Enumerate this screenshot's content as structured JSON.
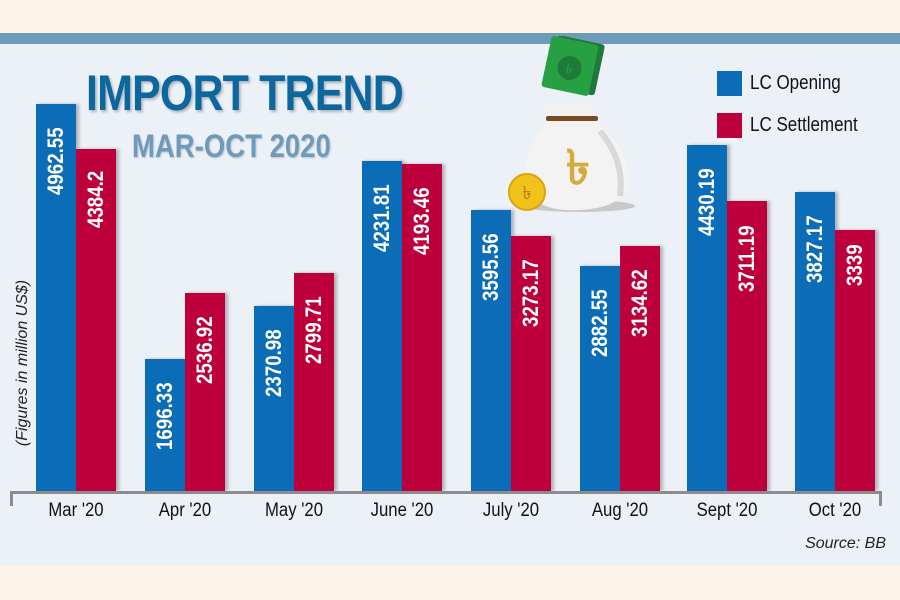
{
  "header": {
    "title": "IMPORT TREND",
    "subtitle": "MAR-OCT 2020"
  },
  "legend": [
    {
      "label": "LC Opening",
      "color": "#0b6cb8"
    },
    {
      "label": "LC Settlement",
      "color": "#bd003b"
    }
  ],
  "ylabel_text": "(Figures in million US$)",
  "source_text": "Source: BB",
  "illustration": "money-bag-taka-icon",
  "chart_data": {
    "type": "bar",
    "title": "IMPORT TREND",
    "subtitle": "MAR-OCT 2020",
    "xlabel": "",
    "ylabel": "(Figures in million US$)",
    "categories": [
      "Mar '20",
      "Apr '20",
      "May '20",
      "June '20",
      "July '20",
      "Aug '20",
      "Sept '20",
      "Oct '20"
    ],
    "series": [
      {
        "name": "LC Opening",
        "color": "#0b6cb8",
        "values": [
          4962.55,
          1696.33,
          2370.98,
          4231.81,
          3595.56,
          2882.55,
          4430.19,
          3827.17
        ]
      },
      {
        "name": "LC Settlement",
        "color": "#bd003b",
        "values": [
          4384.2,
          2536.92,
          2799.71,
          4193.46,
          3273.17,
          3134.62,
          3711.19,
          3339
        ]
      }
    ],
    "value_labels": {
      "opening": [
        "4962.55",
        "1696.33",
        "2370.98",
        "4231.81",
        "3595.56",
        "2882.55",
        "4430.19",
        "3827.17"
      ],
      "settlement": [
        "4384.2",
        "2536.92",
        "2799.71",
        "4193.46",
        "3273.17",
        "3134.62",
        "3711.19",
        "3339"
      ]
    },
    "grid": false,
    "legend_position": "top-right",
    "annotations": [
      "Source: BB"
    ]
  }
}
